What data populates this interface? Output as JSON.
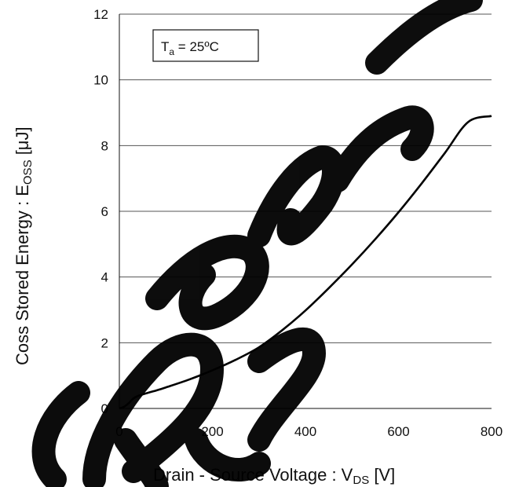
{
  "chart_data": {
    "type": "line",
    "title": "",
    "xlabel": {
      "main": "Drain - Source Voltage : V",
      "sub": "DS",
      "unit": " [V]"
    },
    "ylabel": {
      "main": "Coss Stored Energy : E",
      "sub": "OSS",
      "unit": " [μJ]"
    },
    "xlim": [
      0,
      800
    ],
    "ylim": [
      0,
      12
    ],
    "xticks": [
      0,
      200,
      400,
      600,
      800
    ],
    "yticks": [
      0,
      2,
      4,
      6,
      8,
      10,
      12
    ],
    "grid": {
      "horizontal": true,
      "vertical": false
    },
    "annotation": {
      "main": "T",
      "sub": "a",
      "rest": " = 25ºC"
    },
    "series": [
      {
        "color": "#000000",
        "points": [
          [
            0,
            0
          ],
          [
            10,
            0.05
          ],
          [
            20,
            0.16
          ],
          [
            30,
            0.3
          ],
          [
            40,
            0.38
          ],
          [
            60,
            0.47
          ],
          [
            80,
            0.55
          ],
          [
            100,
            0.64
          ],
          [
            150,
            0.88
          ],
          [
            200,
            1.16
          ],
          [
            250,
            1.48
          ],
          [
            300,
            1.86
          ],
          [
            350,
            2.38
          ],
          [
            400,
            2.98
          ],
          [
            450,
            3.66
          ],
          [
            500,
            4.38
          ],
          [
            550,
            5.15
          ],
          [
            600,
            5.97
          ],
          [
            650,
            6.85
          ],
          [
            700,
            7.78
          ],
          [
            750,
            8.72
          ],
          [
            800,
            8.9
          ]
        ]
      }
    ]
  }
}
